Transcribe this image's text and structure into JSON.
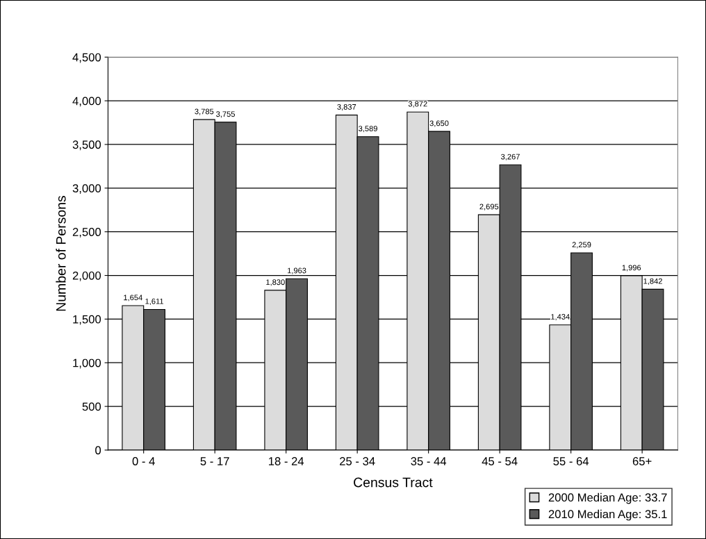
{
  "chart_data": {
    "type": "bar",
    "xlabel": "Census Tract",
    "ylabel": "Number of Persons",
    "categories": [
      "0 - 4",
      "5 - 17",
      "18 - 24",
      "25 - 34",
      "35 - 44",
      "45 - 54",
      "55 - 64",
      "65+"
    ],
    "series": [
      {
        "name": "2000 Median Age: 33.7",
        "color": "#dcdcdc",
        "values": [
          1654,
          3785,
          1830,
          3837,
          3872,
          2695,
          1434,
          1996
        ],
        "value_labels": [
          "1,654",
          "3,785",
          "1,830",
          "3,837",
          "3,872",
          "2,695",
          "1,434",
          "1,996"
        ]
      },
      {
        "name": "2010 Median Age: 35.1",
        "color": "#5a5a5a",
        "values": [
          1611,
          3755,
          1963,
          3589,
          3650,
          3267,
          2259,
          1842
        ],
        "value_labels": [
          "1,611",
          "3,755",
          "1,963",
          "3,589",
          "3,650",
          "3,267",
          "2,259",
          "1,842"
        ]
      }
    ],
    "ylim": [
      0,
      4500
    ],
    "yticks": [
      {
        "value": 0,
        "label": "0"
      },
      {
        "value": 500,
        "label": "500"
      },
      {
        "value": 1000,
        "label": "1,000"
      },
      {
        "value": 1500,
        "label": "1,500"
      },
      {
        "value": 2000,
        "label": "2,000"
      },
      {
        "value": 2500,
        "label": "2,500"
      },
      {
        "value": 3000,
        "label": "3,000"
      },
      {
        "value": 3500,
        "label": "3,500"
      },
      {
        "value": 4000,
        "label": "4,000"
      },
      {
        "value": 4500,
        "label": "4,500"
      }
    ],
    "grid": "y",
    "legend": "bottom right"
  }
}
